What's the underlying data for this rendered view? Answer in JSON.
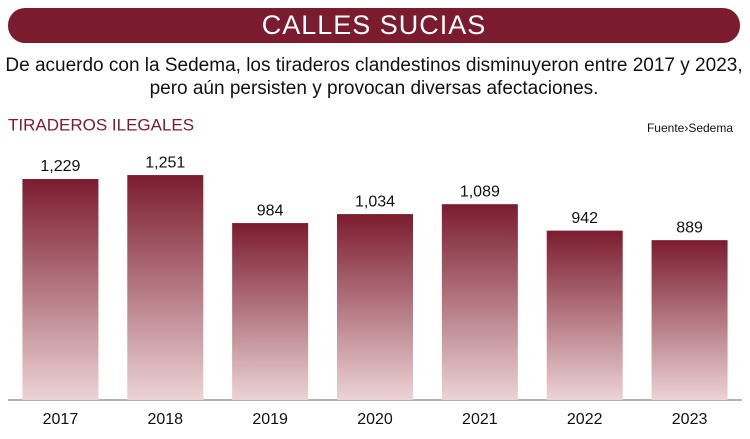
{
  "chart_data": {
    "type": "bar",
    "title": "CALLES SUCIAS",
    "subtitle": [
      "De acuerdo con la Sedema, los tiraderos clandestinos disminuyeron entre 2017 y 2023,",
      "pero aún persisten y provocan diversas afectaciones."
    ],
    "chart_label": "TIRADEROS ILEGALES",
    "source": "Fuente›Sedema",
    "categories": [
      "2017",
      "2018",
      "2019",
      "2020",
      "2021",
      "2022",
      "2023"
    ],
    "values": [
      1229,
      1251,
      984,
      1034,
      1089,
      942,
      889
    ],
    "value_labels": [
      "1,229",
      "1,251",
      "984",
      "1,034",
      "1,089",
      "942",
      "889"
    ],
    "color": "#7b1c2e"
  }
}
